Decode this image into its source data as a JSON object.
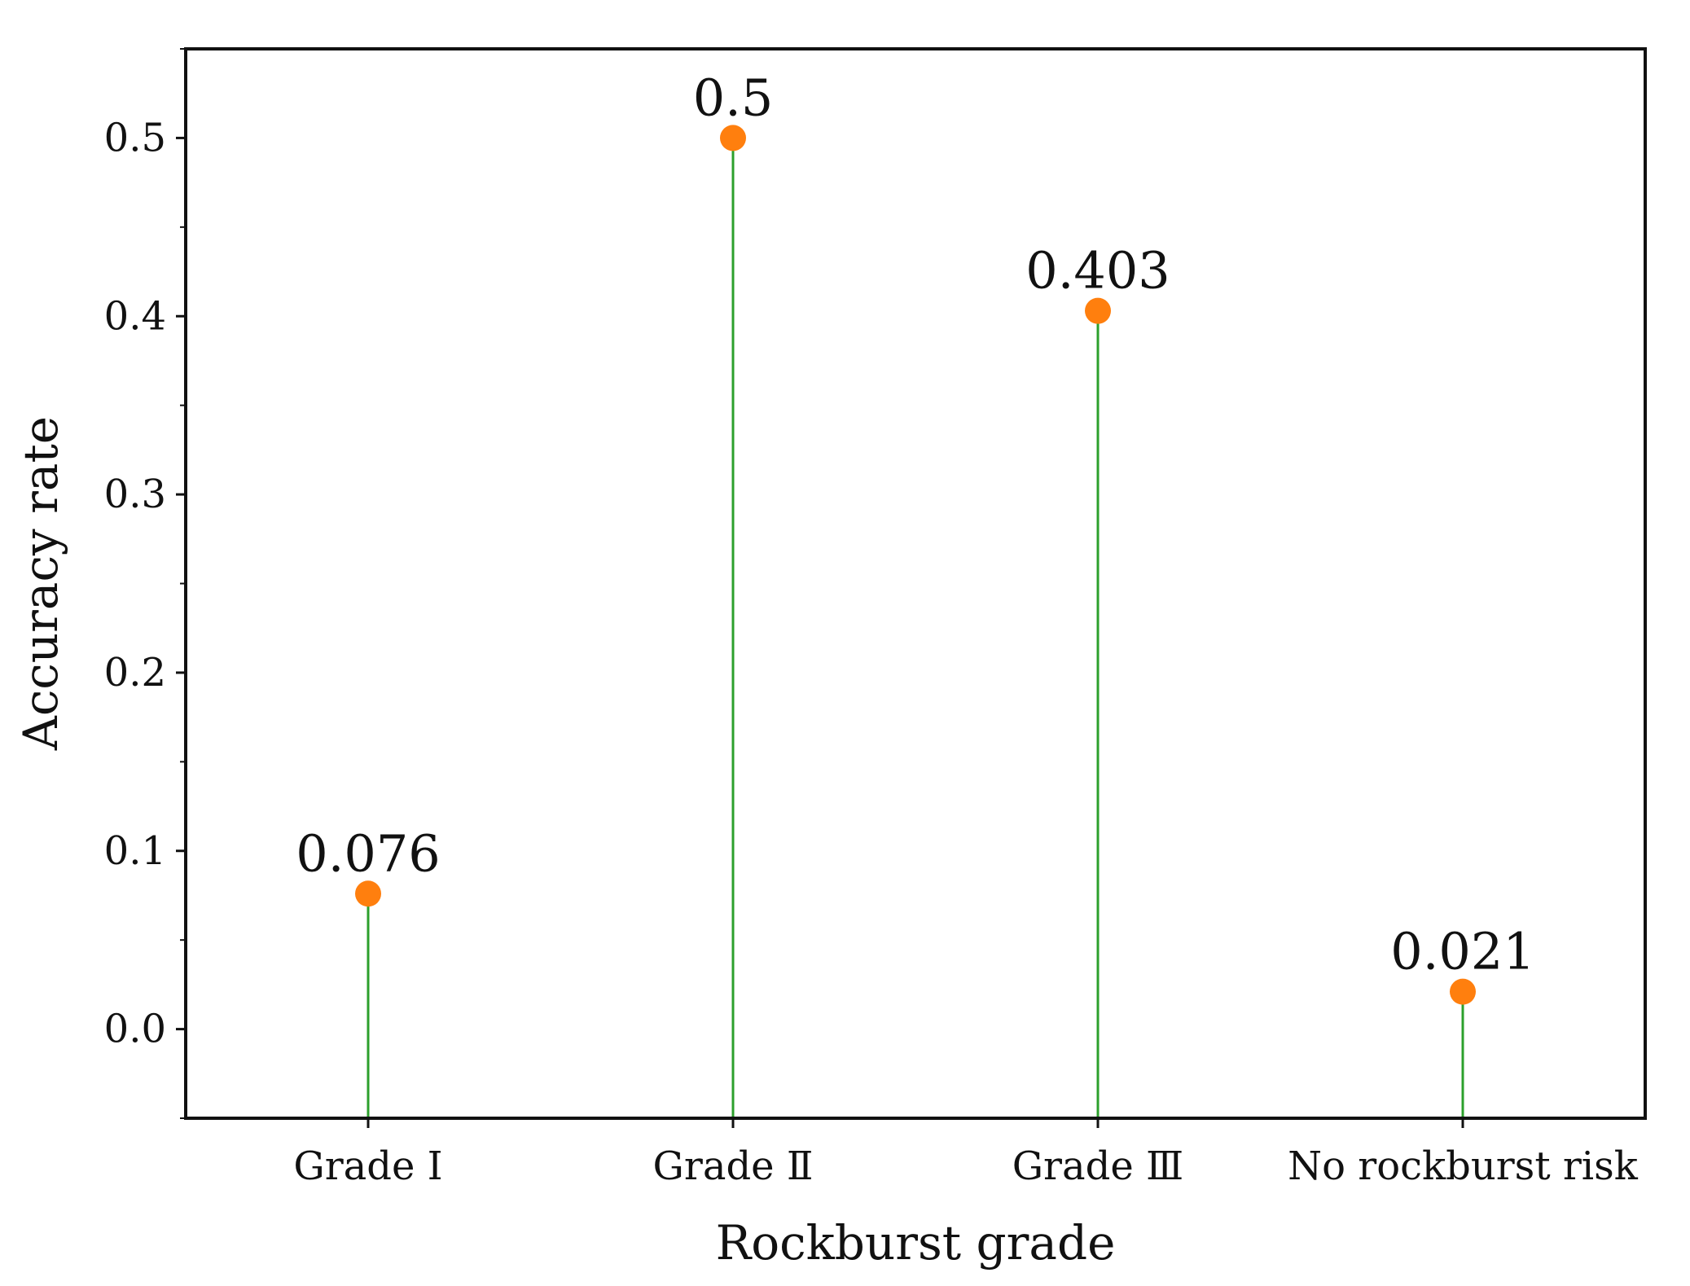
{
  "chart_data": {
    "type": "stem",
    "title": "",
    "xlabel": "Rockburst grade",
    "ylabel": "Accuracy rate",
    "categories": [
      "Grade Ⅰ",
      "Grade  Ⅱ",
      "Grade  Ⅲ",
      "No rockburst risk"
    ],
    "values": [
      0.076,
      0.5,
      0.403,
      0.021
    ],
    "value_labels": [
      "0.076",
      "0.5",
      "0.403",
      "0.021"
    ],
    "ylim": [
      -0.05,
      0.55
    ],
    "yticks": [
      0.0,
      0.1,
      0.2,
      0.3,
      0.4,
      0.5
    ],
    "ytick_labels": [
      "0.0",
      "0.1",
      "0.2",
      "0.3",
      "0.4",
      "0.5"
    ],
    "y_minor_step": 0.05,
    "grid": false,
    "stem_color": "#2ca02c",
    "marker_color": "#ff7f0e"
  }
}
